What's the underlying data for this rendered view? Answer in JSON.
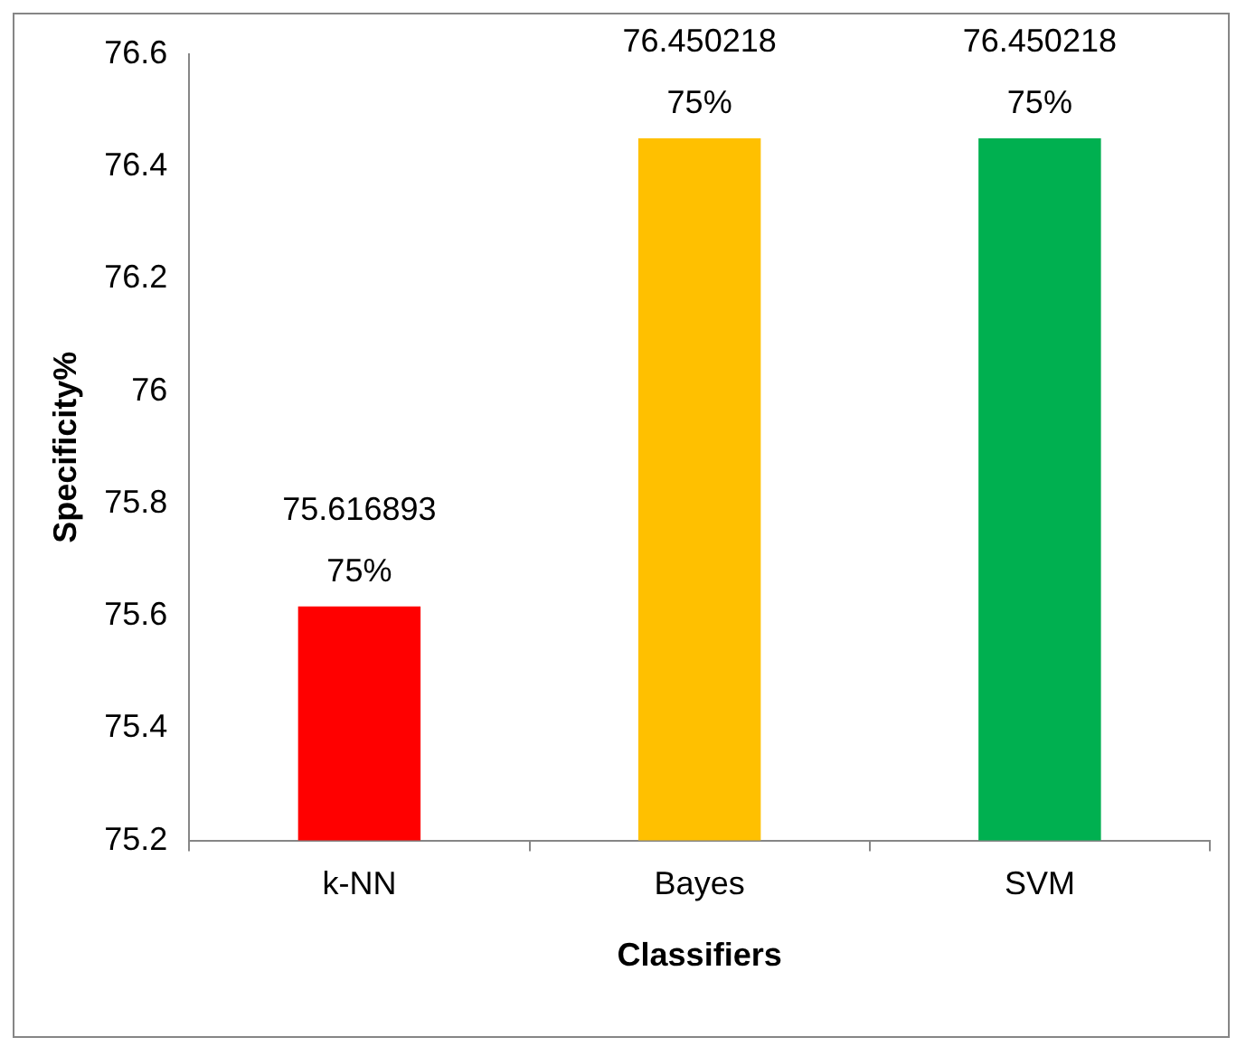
{
  "chart_data": {
    "type": "bar",
    "xlabel": "Classifiers",
    "ylabel": "Specificity%",
    "categories": [
      "k-NN",
      "Bayes",
      "SVM"
    ],
    "values": [
      75.61689375,
      76.45021875,
      76.45021875
    ],
    "colors": [
      "#ff0000",
      "#ffc000",
      "#00b050"
    ],
    "value_labels": [
      "75.61689375%",
      "76.45021875%",
      "76.45021875%"
    ],
    "ylim": [
      75.2,
      76.6
    ],
    "yticks": [
      75.2,
      75.4,
      75.6,
      75.8,
      76,
      76.2,
      76.4,
      76.6
    ],
    "grid": false,
    "legend": false
  }
}
